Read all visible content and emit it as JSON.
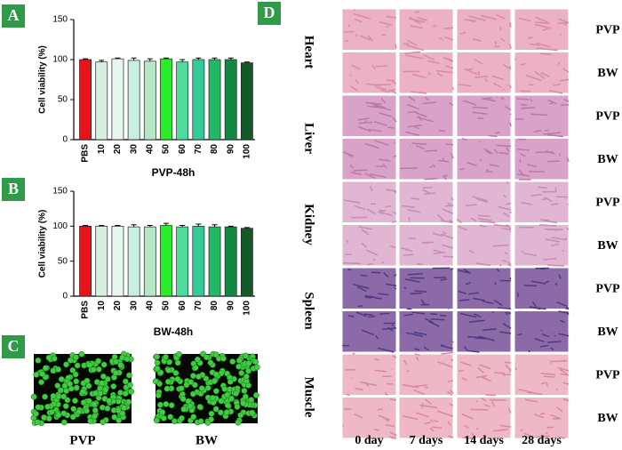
{
  "panels": [
    "A",
    "B",
    "C",
    "D"
  ],
  "chart_data": [
    {
      "type": "bar",
      "x_label": "PVP-48h",
      "y_label": "Cell viability (%)",
      "categories": [
        "PBS",
        "10",
        "20",
        "30",
        "40",
        "50",
        "60",
        "70",
        "80",
        "90",
        "100"
      ],
      "values": [
        100,
        97,
        101,
        99,
        98,
        101,
        97,
        100,
        100,
        100,
        96
      ],
      "errors": [
        1,
        2,
        1,
        3,
        3,
        1,
        3,
        2,
        2,
        2,
        1
      ],
      "colors": [
        "#e8141b",
        "#d6efdf",
        "#e6f7ee",
        "#c8efdf",
        "#b6e6c6",
        "#2bee2b",
        "#4fdc9c",
        "#33cc99",
        "#22b866",
        "#118844",
        "#145a26"
      ],
      "ylim": [
        0,
        150
      ],
      "yticks": [
        0,
        50,
        100,
        150
      ]
    },
    {
      "type": "bar",
      "x_label": "BW-48h",
      "y_label": "Cell viability (%)",
      "categories": [
        "PBS",
        "10",
        "20",
        "30",
        "40",
        "50",
        "60",
        "70",
        "80",
        "90",
        "100"
      ],
      "values": [
        100,
        100,
        100,
        99,
        99,
        101,
        99,
        100,
        99,
        99,
        97
      ],
      "errors": [
        1,
        1,
        1,
        3,
        2,
        3,
        2,
        3,
        3,
        1,
        1
      ],
      "colors": [
        "#e8141b",
        "#d6efdf",
        "#e6f7ee",
        "#c8efdf",
        "#b6e6c6",
        "#2bee2b",
        "#4fdc9c",
        "#33cc99",
        "#22b866",
        "#118844",
        "#145a26"
      ],
      "ylim": [
        0,
        150
      ],
      "yticks": [
        0,
        50,
        100,
        150
      ]
    }
  ],
  "microscopy": {
    "labels": [
      "PVP",
      "BW"
    ]
  },
  "histology": {
    "organs": [
      "Heart",
      "Liver",
      "Kidney",
      "Spleen",
      "Muscle"
    ],
    "groups": [
      "PVP",
      "BW"
    ],
    "days": [
      "0 day",
      "7 days",
      "14 days",
      "28 days"
    ]
  }
}
